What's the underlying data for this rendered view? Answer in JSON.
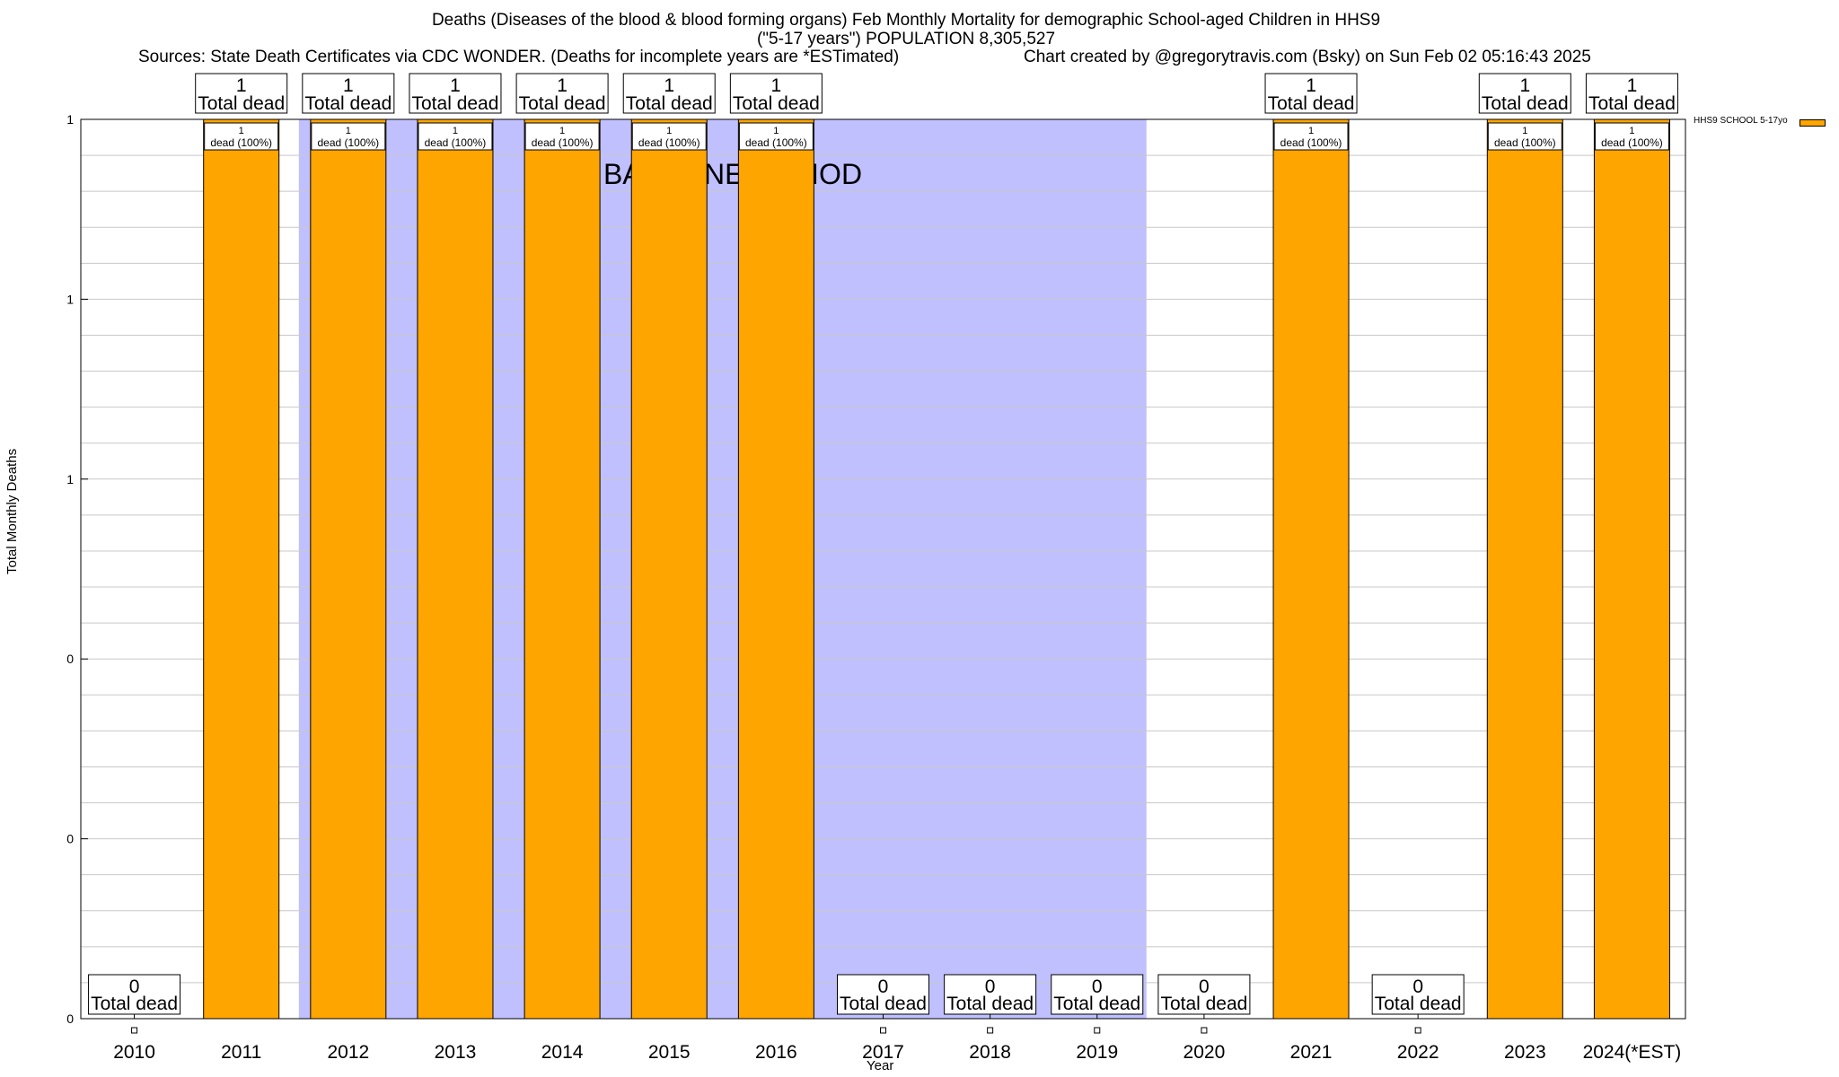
{
  "header": {
    "title": "Deaths (Diseases of the blood & blood forming organs) Feb Monthly Mortality for demographic School-aged Children in HHS9",
    "subtitle": "(\"5-17 years\") POPULATION 8,305,527",
    "sources": "Sources: State Death Certificates via CDC WONDER. (Deaths for incomplete years are *ESTimated)",
    "credit": "Chart created by @gregorytravis.com (Bsky) on Sun Feb 02 05:16:43 2025"
  },
  "chart_data": {
    "type": "bar",
    "title": "Deaths (Diseases of the blood & blood forming organs) Feb Monthly Mortality for demographic School-aged Children in HHS9",
    "xlabel": "Year",
    "ylabel": "Total Monthly Deaths",
    "categories": [
      "2010",
      "2011",
      "2012",
      "2013",
      "2014",
      "2015",
      "2016",
      "2017",
      "2018",
      "2019",
      "2020",
      "2021",
      "2022",
      "2023",
      "2024(*EST)"
    ],
    "series": [
      {
        "name": "HHS9 SCHOOL 5-17yo",
        "color": "#ffa500",
        "values": [
          0,
          1,
          1,
          1,
          1,
          1,
          1,
          0,
          0,
          0,
          0,
          1,
          0,
          1,
          1
        ]
      }
    ],
    "total_labels": [
      "0",
      "1",
      "1",
      "1",
      "1",
      "1",
      "1",
      "0",
      "0",
      "0",
      "0",
      "1",
      "0",
      "1",
      "1"
    ],
    "total_suffix": "Total dead",
    "bar_labels": [
      "",
      "1",
      "1",
      "1",
      "1",
      "1",
      "1",
      "",
      "",
      "",
      "",
      "1",
      "",
      "1",
      "1"
    ],
    "bar_label_suffix": "dead (100%)",
    "ylim": [
      0,
      1
    ],
    "yticks": [
      "0",
      "0",
      "0",
      "1",
      "1",
      "1"
    ],
    "grid": true,
    "legend_position": "top-right",
    "baseline": {
      "label": "BASELINE PERIOD",
      "start": "2012",
      "end": "2019",
      "color": "#c0c0ff"
    }
  }
}
